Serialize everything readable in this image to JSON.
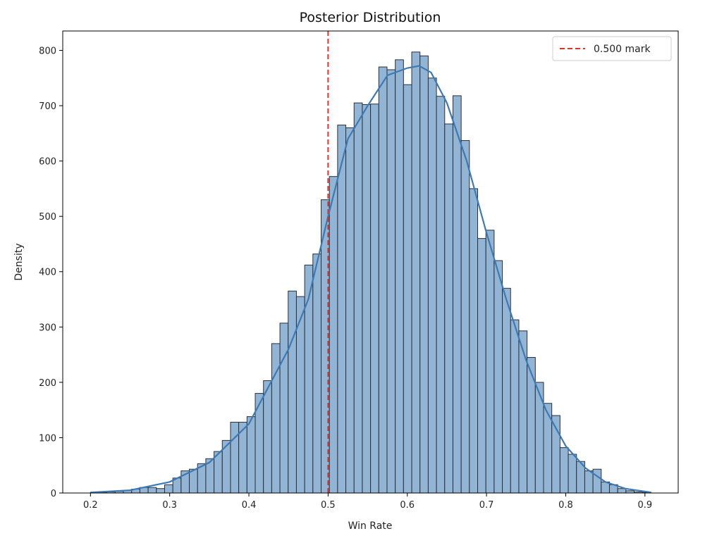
{
  "chart_data": {
    "type": "bar",
    "title": "Posterior Distribution",
    "xlabel": "Win Rate",
    "ylabel": "Density",
    "xlim": [
      0.165,
      0.942
    ],
    "ylim": [
      0,
      835
    ],
    "xticks": [
      0.2,
      0.3,
      0.4,
      0.5,
      0.6,
      0.7,
      0.8,
      0.9
    ],
    "xtick_labels": [
      "0.2",
      "0.3",
      "0.4",
      "0.5",
      "0.6",
      "0.7",
      "0.8",
      "0.9"
    ],
    "yticks": [
      0,
      100,
      200,
      300,
      400,
      500,
      600,
      700,
      800
    ],
    "ytick_labels": [
      "0",
      "100",
      "200",
      "300",
      "400",
      "500",
      "600",
      "700",
      "800"
    ],
    "grid": false,
    "bin_start": 0.2,
    "bin_width": 0.0104,
    "values": [
      1,
      1,
      2,
      3,
      5,
      7,
      10,
      10,
      8,
      15,
      27,
      40,
      43,
      53,
      62,
      75,
      95,
      128,
      128,
      138,
      180,
      203,
      270,
      307,
      365,
      355,
      412,
      432,
      530,
      572,
      665,
      660,
      705,
      702,
      703,
      770,
      765,
      783,
      738,
      797,
      790,
      750,
      717,
      667,
      718,
      637,
      550,
      460,
      475,
      420,
      370,
      313,
      293,
      245,
      200,
      162,
      140,
      82,
      70,
      57,
      40,
      43,
      20,
      15,
      8,
      4,
      2,
      1
    ],
    "kde": {
      "x": [
        0.2,
        0.25,
        0.3,
        0.35,
        0.4,
        0.45,
        0.475,
        0.5,
        0.525,
        0.55,
        0.575,
        0.6,
        0.615,
        0.63,
        0.65,
        0.675,
        0.7,
        0.725,
        0.75,
        0.775,
        0.8,
        0.825,
        0.85,
        0.875,
        0.908
      ],
      "y": [
        1,
        5,
        20,
        55,
        125,
        260,
        350,
        500,
        640,
        700,
        755,
        768,
        772,
        760,
        705,
        600,
        470,
        350,
        240,
        150,
        85,
        45,
        20,
        8,
        1
      ]
    },
    "vline": {
      "x": 0.5,
      "label": "0.500 mark",
      "style": "dashed"
    },
    "legend_position": "top-right",
    "colors": {
      "bar_fill": "#93b5d5",
      "bar_edge": "#2b2f36",
      "kde": "#3d7ab3",
      "vline": "#e0312b"
    }
  }
}
